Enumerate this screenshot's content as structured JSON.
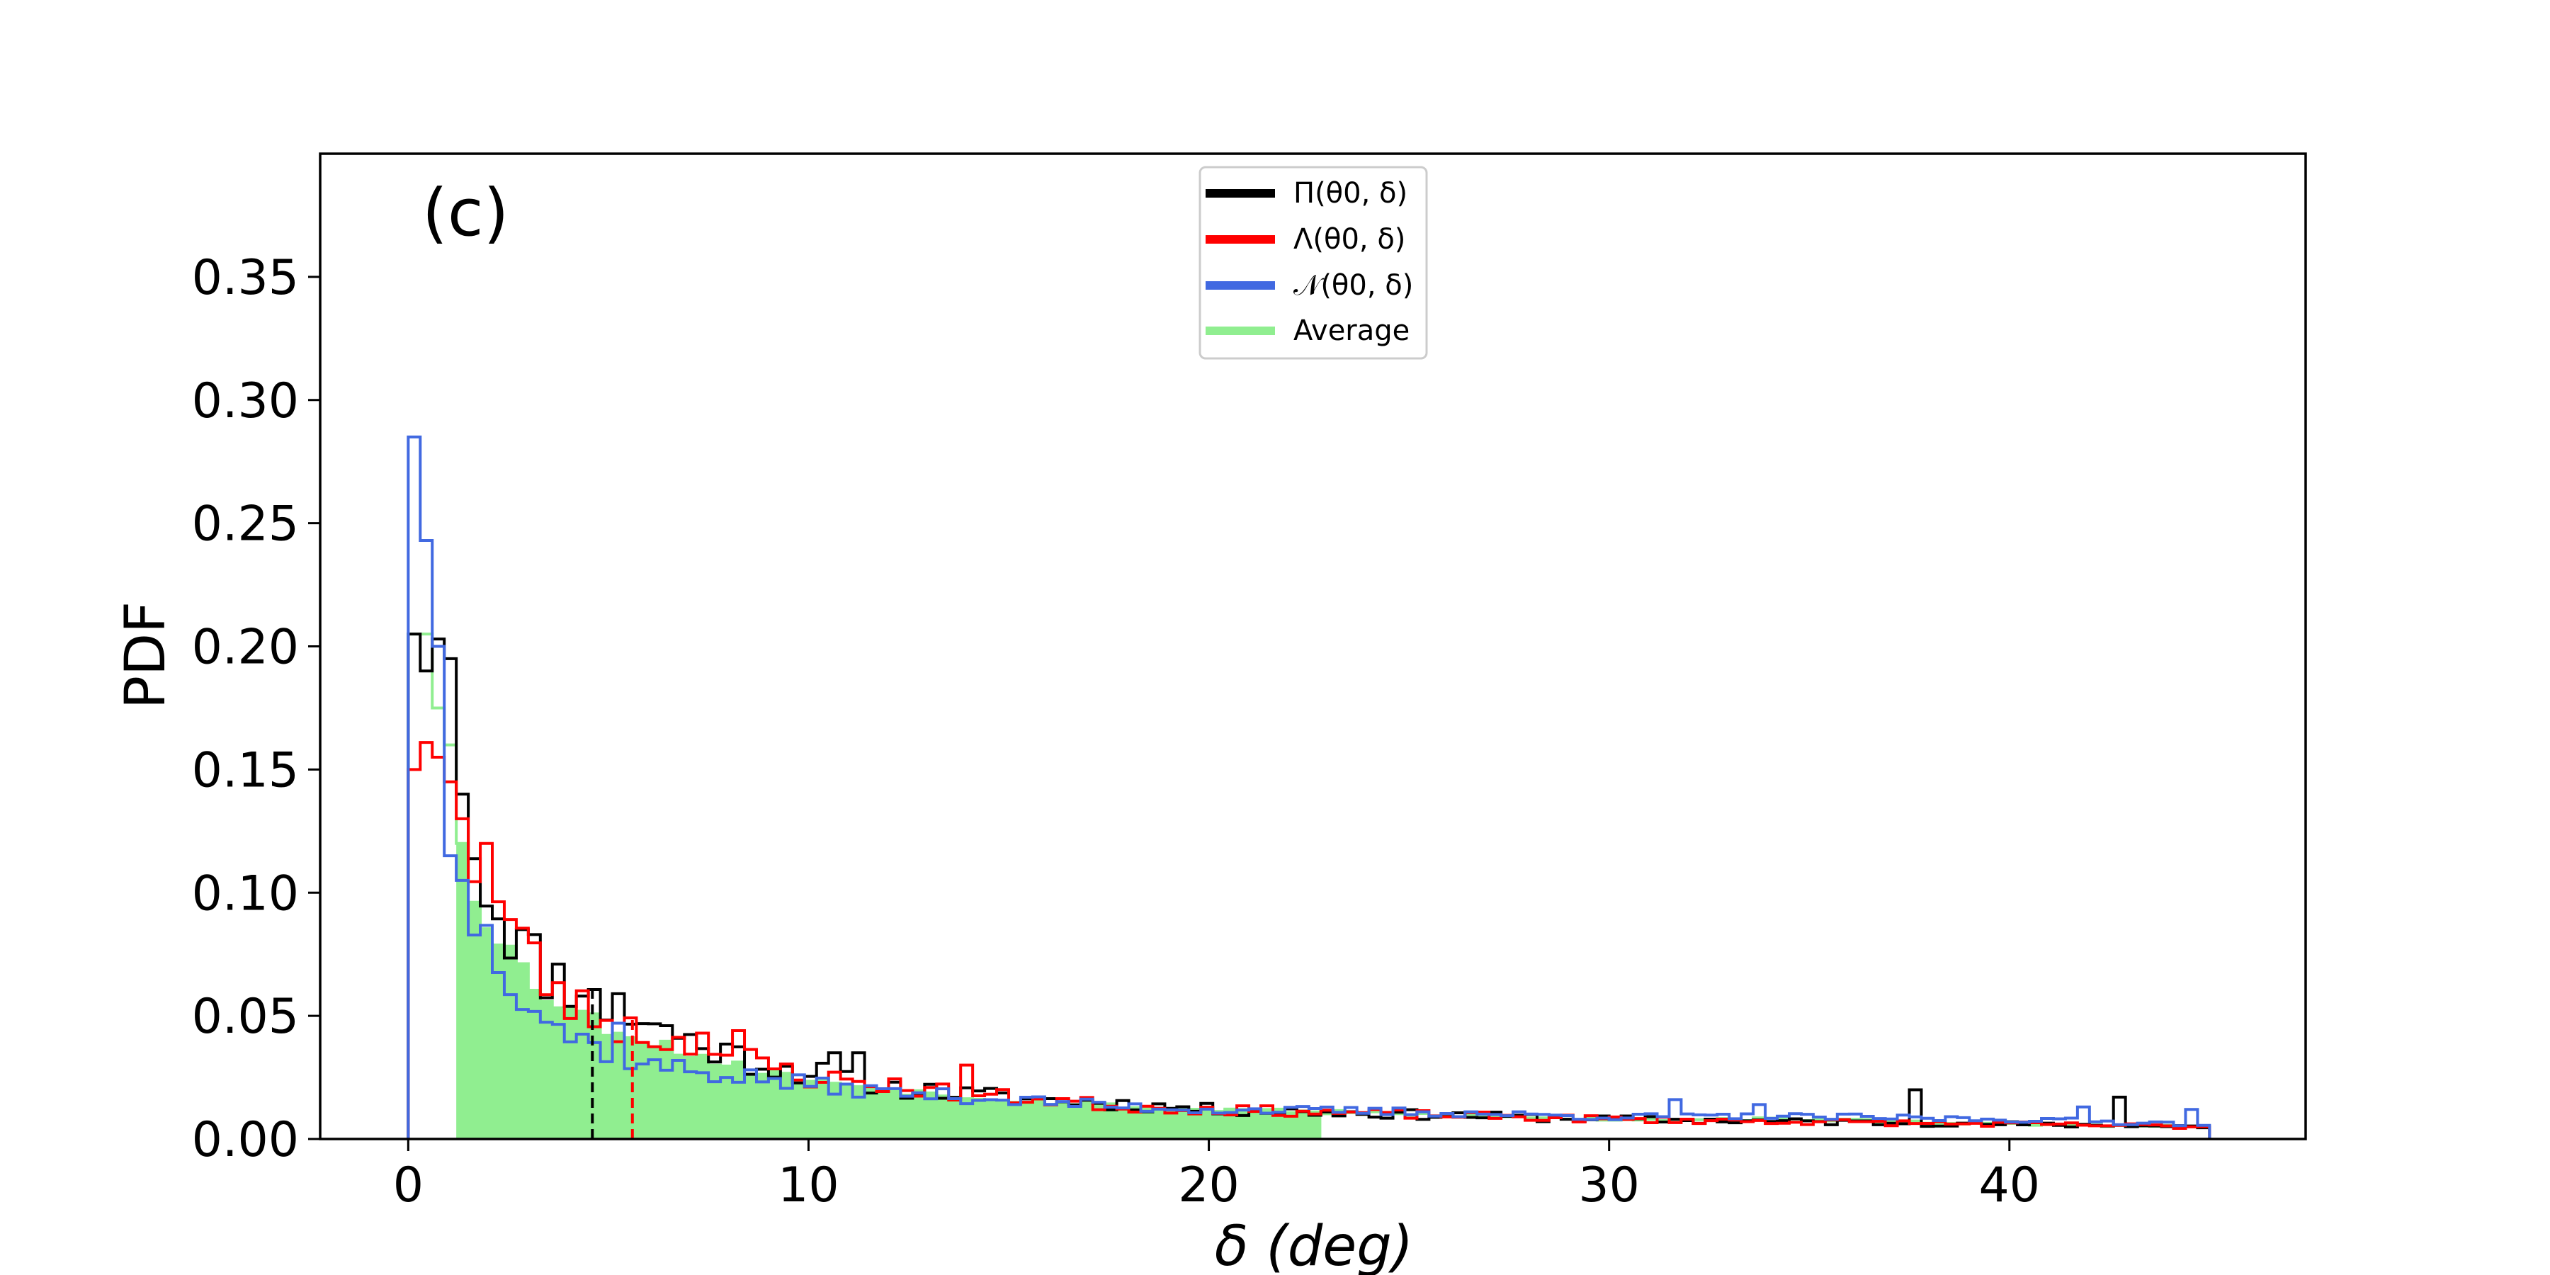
{
  "chart_data": {
    "type": "histogram",
    "panel_label": "(c)",
    "xlabel": "δ (deg)",
    "ylabel": "PDF",
    "xlim": [
      -2.2,
      47.4
    ],
    "ylim": [
      0,
      0.4
    ],
    "xticks": [
      0,
      10,
      20,
      30,
      40
    ],
    "yticks": [
      0.0,
      0.05,
      0.1,
      0.15,
      0.2,
      0.25,
      0.3,
      0.35
    ],
    "ytick_labels": [
      "0.00",
      "0.05",
      "0.10",
      "0.15",
      "0.20",
      "0.25",
      "0.30",
      "0.35"
    ],
    "bin_width": 0.3,
    "x_range": [
      0,
      45
    ],
    "legend": {
      "location": "upper center",
      "entries": [
        {
          "label": "Π(θ0, δ)",
          "color": "#000000"
        },
        {
          "label": "Λ(θ0, δ)",
          "color": "#ff0000"
        },
        {
          "label": "𝒩(θ0, δ)",
          "color": "#4169e1"
        },
        {
          "label": "Average",
          "color": "#90ee90"
        }
      ]
    },
    "series": [
      {
        "name": "Π(θ0, δ)",
        "color": "#000000",
        "style": "step",
        "anchors": [
          [
            0.15,
            0.205
          ],
          [
            0.45,
            0.19
          ],
          [
            0.75,
            0.203
          ],
          [
            1.05,
            0.195
          ],
          [
            1.35,
            0.14
          ],
          [
            1.65,
            0.127
          ],
          [
            2.0,
            0.1
          ],
          [
            2.5,
            0.09
          ],
          [
            3.0,
            0.075
          ],
          [
            3.5,
            0.068
          ],
          [
            4.0,
            0.065
          ],
          [
            4.5,
            0.055
          ],
          [
            5.0,
            0.053
          ],
          [
            5.5,
            0.05
          ],
          [
            6.0,
            0.045
          ],
          [
            7.0,
            0.04
          ],
          [
            8.0,
            0.035
          ],
          [
            9.0,
            0.03
          ],
          [
            10.0,
            0.027
          ],
          [
            11.0,
            0.025
          ],
          [
            12.0,
            0.021
          ],
          [
            14.0,
            0.018
          ],
          [
            16.0,
            0.016
          ],
          [
            18.0,
            0.014
          ],
          [
            20.0,
            0.012
          ],
          [
            25.0,
            0.01
          ],
          [
            30.0,
            0.008
          ],
          [
            35.0,
            0.007
          ],
          [
            40.0,
            0.006
          ],
          [
            45.0,
            0.005
          ]
        ],
        "noise": 0.2,
        "seed": 11,
        "spikes": [
          [
            10.6,
            0.035
          ],
          [
            11.2,
            0.035
          ],
          [
            5.2,
            0.059
          ],
          [
            4.3,
            0.058
          ],
          [
            37.6,
            0.02
          ],
          [
            42.6,
            0.017
          ],
          [
            6.5,
            0.046
          ],
          [
            3.7,
            0.071
          ],
          [
            2.8,
            0.085
          ]
        ],
        "mean_line": 4.6
      },
      {
        "name": "Λ(θ0, δ)",
        "color": "#ff0000",
        "style": "step",
        "anchors": [
          [
            0.15,
            0.15
          ],
          [
            0.45,
            0.16
          ],
          [
            0.75,
            0.155
          ],
          [
            1.05,
            0.145
          ],
          [
            1.35,
            0.13
          ],
          [
            1.65,
            0.115
          ],
          [
            2.0,
            0.098
          ],
          [
            2.5,
            0.09
          ],
          [
            3.0,
            0.075
          ],
          [
            3.5,
            0.063
          ],
          [
            4.0,
            0.055
          ],
          [
            5.0,
            0.048
          ],
          [
            6.0,
            0.042
          ],
          [
            7.0,
            0.038
          ],
          [
            8.0,
            0.034
          ],
          [
            9.0,
            0.03
          ],
          [
            10.0,
            0.025
          ],
          [
            12.0,
            0.022
          ],
          [
            14.0,
            0.018
          ],
          [
            16.0,
            0.016
          ],
          [
            18.0,
            0.013
          ],
          [
            20.0,
            0.012
          ],
          [
            25.0,
            0.01
          ],
          [
            30.0,
            0.008
          ],
          [
            35.0,
            0.007
          ],
          [
            40.0,
            0.006
          ],
          [
            45.0,
            0.005
          ]
        ],
        "noise": 0.18,
        "seed": 23,
        "spikes": [
          [
            2.0,
            0.12
          ],
          [
            8.2,
            0.044
          ],
          [
            13.9,
            0.03
          ],
          [
            0.45,
            0.161
          ],
          [
            7.4,
            0.043
          ]
        ],
        "mean_line": 5.6
      },
      {
        "name": "𝒩(θ0, δ)",
        "color": "#4169e1",
        "style": "step",
        "anchors": [
          [
            0.15,
            0.285
          ],
          [
            0.45,
            0.243
          ],
          [
            0.75,
            0.2
          ],
          [
            1.05,
            0.115
          ],
          [
            1.35,
            0.105
          ],
          [
            1.65,
            0.09
          ],
          [
            2.0,
            0.082
          ],
          [
            2.5,
            0.07
          ],
          [
            3.0,
            0.058
          ],
          [
            3.5,
            0.05
          ],
          [
            4.0,
            0.042
          ],
          [
            5.0,
            0.036
          ],
          [
            6.0,
            0.03
          ],
          [
            7.0,
            0.028
          ],
          [
            8.0,
            0.026
          ],
          [
            9.0,
            0.024
          ],
          [
            10.0,
            0.022
          ],
          [
            12.0,
            0.019
          ],
          [
            14.0,
            0.017
          ],
          [
            16.0,
            0.015
          ],
          [
            18.0,
            0.013
          ],
          [
            20.0,
            0.012
          ],
          [
            25.0,
            0.011
          ],
          [
            30.0,
            0.009
          ],
          [
            35.0,
            0.009
          ],
          [
            40.0,
            0.008
          ],
          [
            45.0,
            0.006
          ]
        ],
        "noise": 0.16,
        "seed": 37,
        "spikes": [
          [
            31.5,
            0.016
          ],
          [
            33.8,
            0.014
          ],
          [
            41.9,
            0.013
          ],
          [
            44.6,
            0.012
          ],
          [
            5.3,
            0.047
          ]
        ]
      },
      {
        "name": "Average",
        "color": "#90ee90",
        "style": "fill",
        "anchors": [
          [
            0.15,
            0.205
          ],
          [
            0.45,
            0.205
          ],
          [
            0.75,
            0.175
          ],
          [
            1.05,
            0.16
          ],
          [
            1.35,
            0.12
          ],
          [
            1.65,
            0.1
          ],
          [
            2.0,
            0.09
          ],
          [
            2.5,
            0.078
          ],
          [
            3.0,
            0.065
          ],
          [
            3.5,
            0.058
          ],
          [
            4.0,
            0.054
          ],
          [
            5.0,
            0.045
          ],
          [
            6.0,
            0.04
          ],
          [
            7.0,
            0.035
          ],
          [
            8.0,
            0.03
          ],
          [
            9.0,
            0.027
          ],
          [
            10.0,
            0.024
          ],
          [
            12.0,
            0.02
          ],
          [
            14.0,
            0.017
          ],
          [
            16.0,
            0.015
          ],
          [
            18.0,
            0.013
          ],
          [
            20.0,
            0.012
          ],
          [
            25.0,
            0.01
          ],
          [
            30.0,
            0.008
          ],
          [
            35.0,
            0.008
          ],
          [
            40.0,
            0.006
          ],
          [
            45.0,
            0.005
          ]
        ],
        "noise": 0.08,
        "seed": 53,
        "filled_range": [
          1.1,
          23.0
        ]
      }
    ]
  }
}
